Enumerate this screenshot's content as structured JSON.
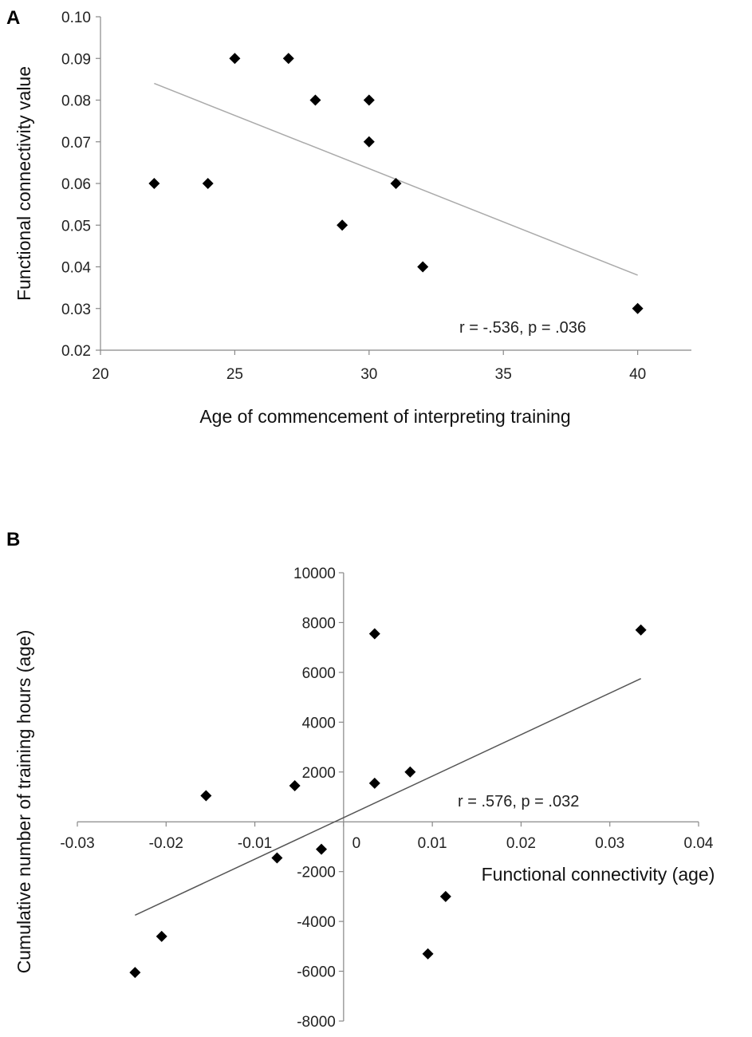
{
  "chart_data": [
    {
      "panel": "A",
      "type": "scatter",
      "title": "",
      "xlabel": "Age of commencement of interpreting training",
      "ylabel": "Functional connectivity value",
      "xlim": [
        20,
        42
      ],
      "ylim": [
        0.02,
        0.1
      ],
      "xticks": [
        20,
        25,
        30,
        35,
        40
      ],
      "xtick_labels": [
        "20",
        "25",
        "30",
        "35",
        "40"
      ],
      "yticks": [
        0.02,
        0.03,
        0.04,
        0.05,
        0.06,
        0.07,
        0.08,
        0.09,
        0.1
      ],
      "ytick_labels": [
        "0.02",
        "0.03",
        "0.04",
        "0.05",
        "0.06",
        "0.07",
        "0.08",
        "0.09",
        "0.10"
      ],
      "points": [
        {
          "x": 22,
          "y": 0.06
        },
        {
          "x": 24,
          "y": 0.06
        },
        {
          "x": 25,
          "y": 0.09
        },
        {
          "x": 27,
          "y": 0.09
        },
        {
          "x": 28,
          "y": 0.08
        },
        {
          "x": 30,
          "y": 0.08
        },
        {
          "x": 30,
          "y": 0.07
        },
        {
          "x": 31,
          "y": 0.06
        },
        {
          "x": 29,
          "y": 0.05
        },
        {
          "x": 32,
          "y": 0.04
        },
        {
          "x": 40,
          "y": 0.03
        }
      ],
      "trendline": {
        "x1": 22,
        "y1": 0.084,
        "x2": 40,
        "y2": 0.038,
        "color": "#aaaaaa"
      },
      "annotation": "r = -.536, p = .036",
      "grid": false
    },
    {
      "panel": "B",
      "type": "scatter",
      "title": "",
      "xlabel": "Functional connectivity (age)",
      "ylabel": "Cumulative number of training hours (age)",
      "xlim": [
        -0.03,
        0.04
      ],
      "ylim": [
        -8000,
        10000
      ],
      "xticks": [
        -0.03,
        -0.02,
        -0.01,
        0,
        0.01,
        0.02,
        0.03,
        0.04
      ],
      "xtick_labels": [
        "-0.03",
        "-0.02",
        "-0.01",
        "0",
        "0.01",
        "0.02",
        "0.03",
        "0.04"
      ],
      "yticks": [
        -8000,
        -6000,
        -4000,
        -2000,
        2000,
        4000,
        6000,
        8000,
        10000
      ],
      "ytick_labels": [
        "-8000",
        "-6000",
        "-4000",
        "-2000",
        "2000",
        "4000",
        "6000",
        "8000",
        "10000"
      ],
      "points": [
        {
          "x": 0.0035,
          "y": 7550
        },
        {
          "x": 0.0335,
          "y": 7700
        },
        {
          "x": 0.0075,
          "y": 2000
        },
        {
          "x": 0.0035,
          "y": 1550
        },
        {
          "x": -0.0155,
          "y": 1050
        },
        {
          "x": -0.0055,
          "y": 1450
        },
        {
          "x": -0.0025,
          "y": -1100
        },
        {
          "x": -0.0075,
          "y": -1450
        },
        {
          "x": 0.0115,
          "y": -3000
        },
        {
          "x": 0.0095,
          "y": -5300
        },
        {
          "x": -0.0205,
          "y": -4600
        },
        {
          "x": -0.0235,
          "y": -6050
        }
      ],
      "trendline": {
        "x1": -0.0235,
        "y1": -3750,
        "x2": 0.0335,
        "y2": 5750,
        "color": "#555555"
      },
      "annotation": "r = .576, p = .032",
      "grid": false
    }
  ],
  "panels": {
    "a_label": "A",
    "b_label": "B"
  }
}
